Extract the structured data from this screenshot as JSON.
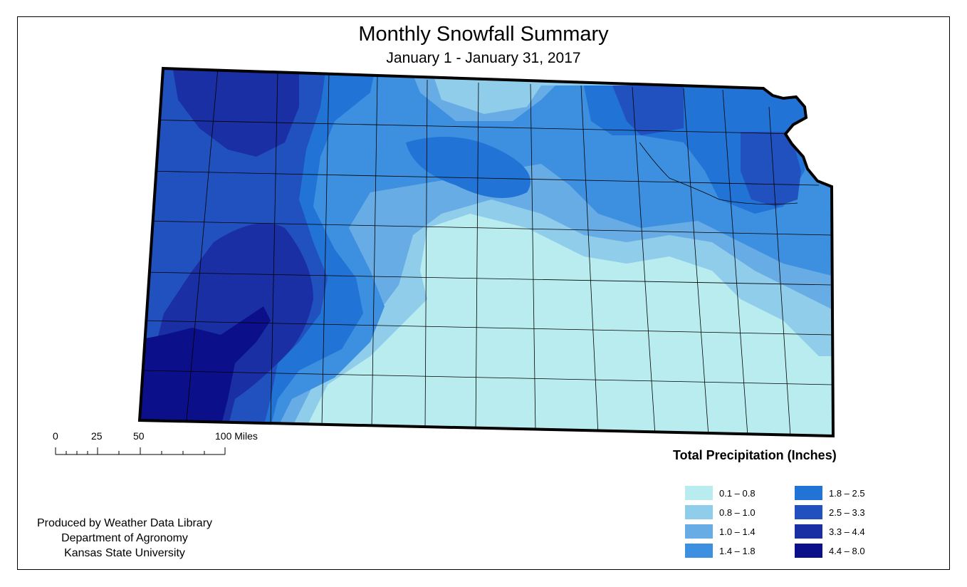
{
  "title": "Monthly Snowfall Summary",
  "subtitle": "January 1 - January 31, 2017",
  "scale_bar": {
    "ticks": [
      "0",
      "25",
      "50",
      "100 Miles"
    ]
  },
  "credits": [
    "Produced by Weather Data Library",
    "Department of Agronomy",
    "Kansas State University"
  ],
  "legend": {
    "title": "Total Precipitation (Inches)",
    "items": [
      {
        "label": "0.1 – 0.8",
        "color": "#b8ecef"
      },
      {
        "label": "0.8 – 1.0",
        "color": "#8fcdeb"
      },
      {
        "label": "1.0 – 1.4",
        "color": "#68ace6"
      },
      {
        "label": "1.4 – 1.8",
        "color": "#3d8fe0"
      },
      {
        "label": "1.8 – 2.5",
        "color": "#2273d6"
      },
      {
        "label": "2.5 – 3.3",
        "color": "#2150bf"
      },
      {
        "label": "3.3 – 4.4",
        "color": "#1a2fa3"
      },
      {
        "label": "4.4 – 8.0",
        "color": "#0b0f8a"
      }
    ]
  }
}
